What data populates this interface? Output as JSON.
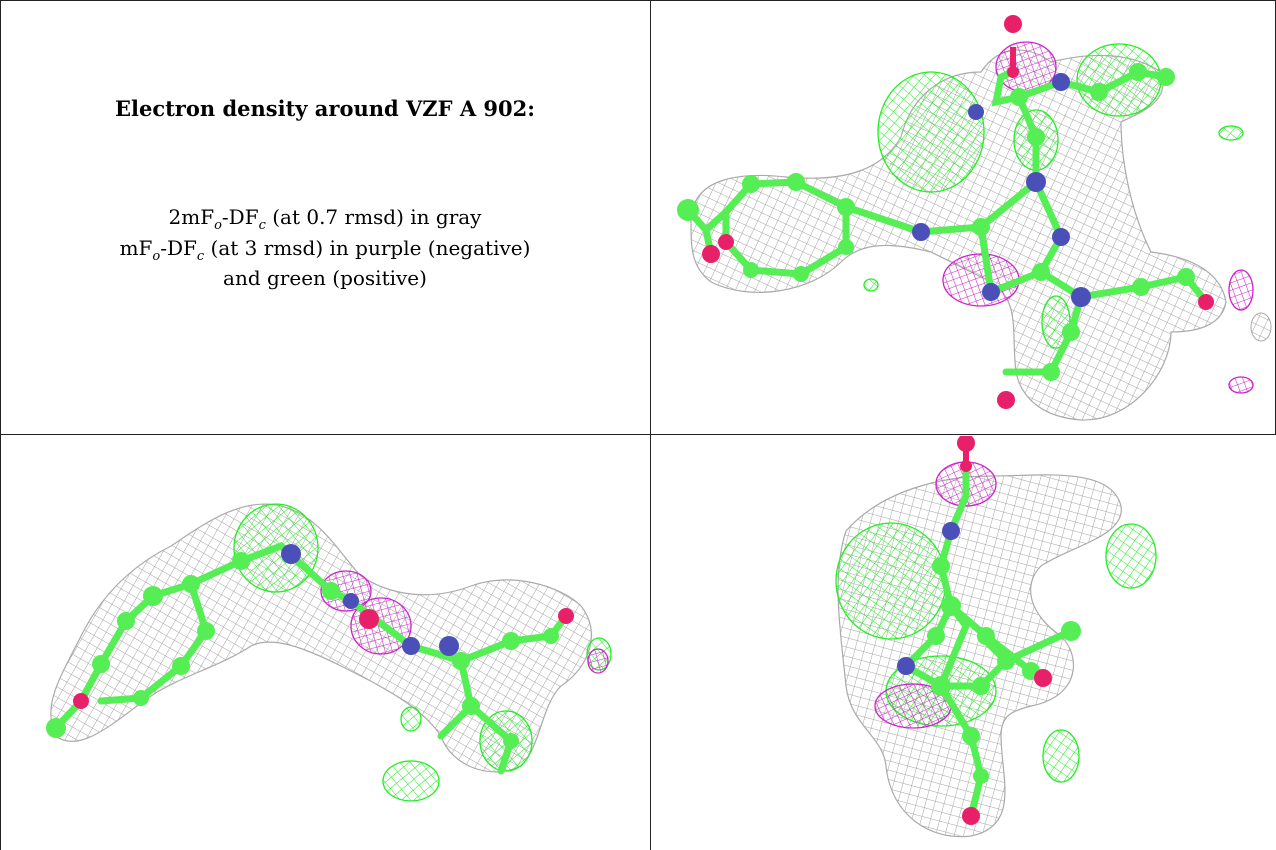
{
  "caption": {
    "title": "Electron density around VZF A 902:",
    "line1_prefix": "2mF",
    "line1_sub1": "o",
    "line1_mid": "-DF",
    "line1_sub2": "c",
    "line1_suffix": " (at 0.7 rmsd) in gray",
    "line2_prefix": "mF",
    "line2_sub1": "o",
    "line2_mid": "-DF",
    "line2_sub2": "c",
    "line2_suffix": " (at 3 rmsd) in purple (negative)",
    "line3": "and green (positive)"
  },
  "colors": {
    "mesh_2fofc": "#a8a8a8",
    "mesh_positive": "#22ee22",
    "mesh_negative": "#cc22cc",
    "carbon": "#55ee55",
    "nitrogen": "#4a50b8",
    "oxygen": "#e8206a"
  },
  "panels": [
    "view-top-right",
    "view-bottom-left",
    "view-bottom-right"
  ]
}
